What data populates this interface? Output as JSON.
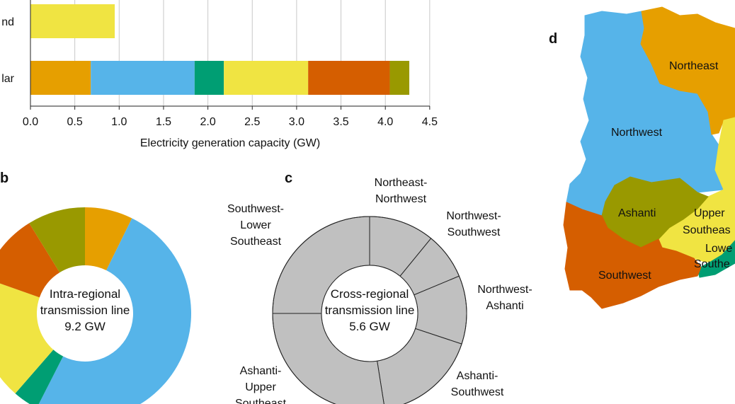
{
  "colors": {
    "orange": "#E69F00",
    "sky": "#56B4E9",
    "green": "#009E73",
    "yellow": "#F0E442",
    "vermillion": "#D55E00",
    "olive": "#999900",
    "grey": "#C0C0C0"
  },
  "panel_labels": {
    "b": "b",
    "c": "c",
    "d": "d"
  },
  "chart_data": [
    {
      "type": "bar",
      "orientation": "horizontal",
      "stacked": true,
      "categories": [
        "nd",
        "lar"
      ],
      "series": [
        {
          "color": "#E69F00",
          "values": [
            0,
            0.68
          ]
        },
        {
          "color": "#56B4E9",
          "values": [
            0,
            1.17
          ]
        },
        {
          "color": "#009E73",
          "values": [
            0,
            0.33
          ]
        },
        {
          "color": "#F0E442",
          "values": [
            0.95,
            0.95
          ]
        },
        {
          "color": "#D55E00",
          "values": [
            0,
            0.92
          ]
        },
        {
          "color": "#999900",
          "values": [
            0,
            0.22
          ]
        }
      ],
      "xlabel": "Electricity generation capacity (GW)",
      "xlim": [
        0,
        4.5
      ],
      "xticks": [
        "0.0",
        "0.5",
        "1.0",
        "1.5",
        "2.0",
        "2.5",
        "3.0",
        "3.5",
        "4.0",
        "4.5"
      ],
      "grid": "vertical"
    },
    {
      "type": "pie",
      "donut": true,
      "center_text": [
        "Intra-regional",
        "transmission line",
        "9.2 GW"
      ],
      "slices": [
        {
          "color": "#E69F00",
          "value": 7.3
        },
        {
          "color": "#56B4E9",
          "value": 50.2
        },
        {
          "color": "#009E73",
          "value": 3.9
        },
        {
          "color": "#F0E442",
          "value": 19.0
        },
        {
          "color": "#D55E00",
          "value": 10.8
        },
        {
          "color": "#999900",
          "value": 8.8
        }
      ]
    },
    {
      "type": "pie",
      "donut": true,
      "center_text": [
        "Cross-regional",
        "transmission line",
        "5.6 GW"
      ],
      "slices": [
        {
          "label": [
            "Northeast-",
            "Northwest"
          ],
          "value": 10.9
        },
        {
          "label": [
            "Northwest-",
            "Southwest"
          ],
          "value": 7.8
        },
        {
          "label": [
            "Northwest-",
            "Ashanti"
          ],
          "value": 11.4
        },
        {
          "label": [
            "Ashanti-",
            "Southwest"
          ],
          "value": 17.4
        },
        {
          "label": [
            "Ashanti-",
            "Upper",
            "Southeast"
          ],
          "value": 27.5
        },
        {
          "label": [
            "Southwest-",
            "Lower",
            "Southeast"
          ],
          "value": 25.0
        }
      ]
    }
  ],
  "map": {
    "regions": [
      {
        "name": "Northeast",
        "color": "#E69F00"
      },
      {
        "name": "Northwest",
        "color": "#56B4E9"
      },
      {
        "name": "Ashanti",
        "color": "#999900"
      },
      {
        "name": "Upper Southeast",
        "lines": [
          "Upper",
          "Southeas"
        ],
        "color": "#F0E442"
      },
      {
        "name": "Lower Southeast",
        "lines": [
          "Lowe",
          "Southe"
        ],
        "color": "#009E73"
      },
      {
        "name": "Southwest",
        "color": "#D55E00"
      }
    ]
  }
}
